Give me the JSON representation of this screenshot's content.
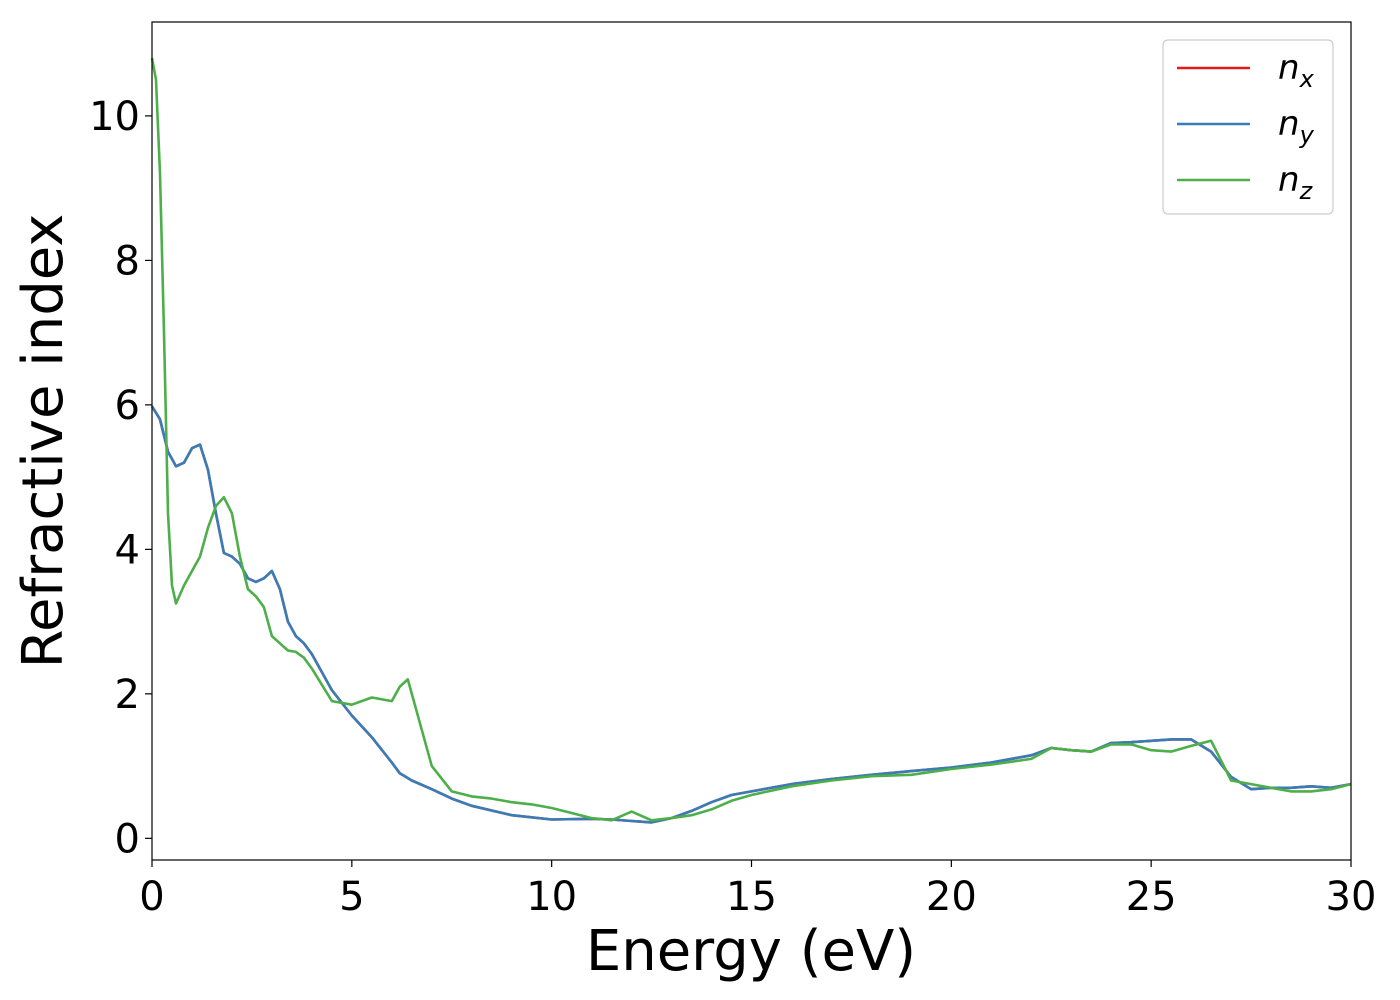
{
  "chart_data": {
    "type": "line",
    "xlabel": "Energy (eV)",
    "ylabel": "Refractive index",
    "xlim": [
      0,
      30
    ],
    "ylim": [
      -0.3,
      11.3
    ],
    "xticks": [
      "0",
      "5",
      "10",
      "15",
      "20",
      "25",
      "30"
    ],
    "yticks": [
      "0",
      "2",
      "4",
      "6",
      "8",
      "10"
    ],
    "grid": false,
    "legend_position": "top-right",
    "series": [
      {
        "name": "n_x",
        "label_main": "n",
        "label_sub": "x",
        "color": "#e41a1c",
        "x": [
          0,
          0.2,
          0.4,
          0.6,
          0.8,
          1.0,
          1.2,
          1.4,
          1.6,
          1.8,
          2.0,
          2.2,
          2.4,
          2.6,
          2.8,
          3.0,
          3.2,
          3.4,
          3.6,
          3.8,
          4.0,
          4.5,
          5.0,
          5.5,
          6.0,
          6.2,
          6.5,
          7.0,
          7.5,
          8.0,
          9.0,
          10.0,
          11.0,
          11.5,
          12.0,
          12.5,
          13.0,
          13.5,
          14.0,
          14.5,
          15.0,
          16.0,
          17.0,
          18.0,
          19.0,
          20.0,
          21.0,
          22.0,
          22.5,
          23.0,
          23.5,
          24.0,
          24.5,
          25.0,
          25.5,
          26.0,
          26.5,
          27.0,
          27.5,
          28.0,
          28.5,
          29.0,
          29.5,
          30.0
        ],
        "y": [
          5.98,
          5.8,
          5.35,
          5.15,
          5.2,
          5.4,
          5.45,
          5.1,
          4.5,
          3.95,
          3.9,
          3.8,
          3.6,
          3.55,
          3.6,
          3.7,
          3.45,
          3.0,
          2.8,
          2.7,
          2.55,
          2.05,
          1.7,
          1.4,
          1.05,
          0.9,
          0.8,
          0.68,
          0.55,
          0.45,
          0.32,
          0.26,
          0.27,
          0.26,
          0.24,
          0.22,
          0.28,
          0.38,
          0.5,
          0.6,
          0.65,
          0.75,
          0.82,
          0.88,
          0.93,
          0.98,
          1.05,
          1.15,
          1.25,
          1.22,
          1.2,
          1.32,
          1.33,
          1.35,
          1.37,
          1.37,
          1.2,
          0.85,
          0.68,
          0.7,
          0.7,
          0.72,
          0.7,
          0.75
        ]
      },
      {
        "name": "n_y",
        "label_main": "n",
        "label_sub": "y",
        "color": "#377eb8",
        "x": [
          0,
          0.2,
          0.4,
          0.6,
          0.8,
          1.0,
          1.2,
          1.4,
          1.6,
          1.8,
          2.0,
          2.2,
          2.4,
          2.6,
          2.8,
          3.0,
          3.2,
          3.4,
          3.6,
          3.8,
          4.0,
          4.5,
          5.0,
          5.5,
          6.0,
          6.2,
          6.5,
          7.0,
          7.5,
          8.0,
          9.0,
          10.0,
          11.0,
          11.5,
          12.0,
          12.5,
          13.0,
          13.5,
          14.0,
          14.5,
          15.0,
          16.0,
          17.0,
          18.0,
          19.0,
          20.0,
          21.0,
          22.0,
          22.5,
          23.0,
          23.5,
          24.0,
          24.5,
          25.0,
          25.5,
          26.0,
          26.5,
          27.0,
          27.5,
          28.0,
          28.5,
          29.0,
          29.5,
          30.0
        ],
        "y": [
          5.98,
          5.8,
          5.35,
          5.15,
          5.2,
          5.4,
          5.45,
          5.1,
          4.5,
          3.95,
          3.9,
          3.8,
          3.6,
          3.55,
          3.6,
          3.7,
          3.45,
          3.0,
          2.8,
          2.7,
          2.55,
          2.05,
          1.7,
          1.4,
          1.05,
          0.9,
          0.8,
          0.68,
          0.55,
          0.45,
          0.32,
          0.26,
          0.27,
          0.26,
          0.24,
          0.22,
          0.28,
          0.38,
          0.5,
          0.6,
          0.65,
          0.75,
          0.82,
          0.88,
          0.93,
          0.98,
          1.05,
          1.15,
          1.25,
          1.22,
          1.2,
          1.32,
          1.33,
          1.35,
          1.37,
          1.37,
          1.2,
          0.85,
          0.68,
          0.7,
          0.7,
          0.72,
          0.7,
          0.75
        ]
      },
      {
        "name": "n_z",
        "label_main": "n",
        "label_sub": "z",
        "color": "#4daf4a",
        "x": [
          0,
          0.1,
          0.2,
          0.3,
          0.4,
          0.5,
          0.6,
          0.8,
          1.0,
          1.2,
          1.4,
          1.6,
          1.8,
          2.0,
          2.2,
          2.4,
          2.6,
          2.8,
          3.0,
          3.2,
          3.4,
          3.6,
          3.8,
          4.0,
          4.5,
          5.0,
          5.5,
          6.0,
          6.2,
          6.4,
          6.7,
          7.0,
          7.5,
          8.0,
          8.5,
          9.0,
          9.5,
          10.0,
          10.5,
          11.0,
          11.5,
          12.0,
          12.5,
          13.0,
          13.5,
          14.0,
          14.5,
          15.0,
          16.0,
          17.0,
          18.0,
          19.0,
          20.0,
          21.0,
          22.0,
          22.5,
          23.0,
          23.5,
          24.0,
          24.5,
          25.0,
          25.5,
          26.0,
          26.5,
          27.0,
          27.5,
          28.0,
          28.5,
          29.0,
          29.5,
          30.0
        ],
        "y": [
          10.8,
          10.5,
          9.2,
          7.0,
          4.5,
          3.5,
          3.25,
          3.5,
          3.7,
          3.9,
          4.3,
          4.6,
          4.72,
          4.5,
          3.9,
          3.45,
          3.35,
          3.2,
          2.8,
          2.7,
          2.6,
          2.58,
          2.5,
          2.35,
          1.9,
          1.85,
          1.95,
          1.9,
          2.1,
          2.2,
          1.6,
          1.0,
          0.65,
          0.58,
          0.55,
          0.5,
          0.47,
          0.42,
          0.35,
          0.28,
          0.25,
          0.37,
          0.25,
          0.28,
          0.32,
          0.4,
          0.52,
          0.6,
          0.72,
          0.8,
          0.86,
          0.88,
          0.96,
          1.02,
          1.1,
          1.25,
          1.22,
          1.2,
          1.3,
          1.3,
          1.22,
          1.2,
          1.28,
          1.35,
          0.8,
          0.75,
          0.7,
          0.65,
          0.65,
          0.68,
          0.75
        ]
      }
    ]
  }
}
